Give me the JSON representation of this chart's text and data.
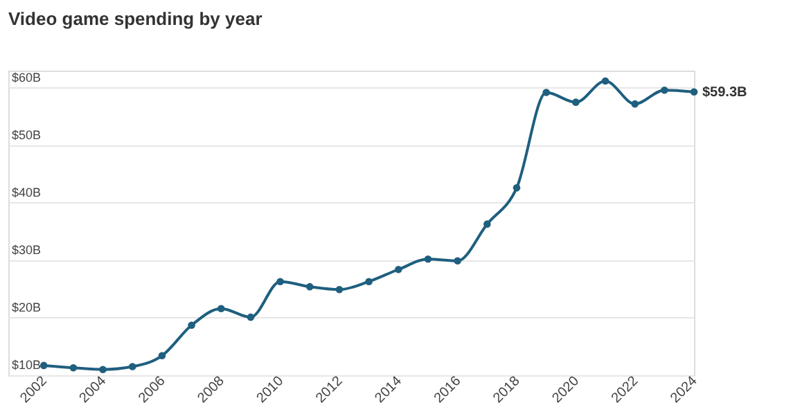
{
  "chart_data": {
    "type": "line",
    "title": "Video game spending by year",
    "x": [
      2002,
      2003,
      2004,
      2005,
      2006,
      2007,
      2008,
      2009,
      2010,
      2011,
      2012,
      2013,
      2014,
      2015,
      2016,
      2017,
      2018,
      2019,
      2020,
      2021,
      2022,
      2023,
      2024
    ],
    "series": [
      {
        "color": "#1f5f7f",
        "values": [
          11.7,
          11.3,
          11.0,
          11.5,
          13.4,
          18.7,
          21.6,
          20.1,
          26.3,
          25.4,
          24.9,
          26.3,
          28.4,
          30.2,
          29.9,
          36.3,
          42.6,
          59.2,
          57.5,
          61.2,
          57.2,
          59.6,
          59.3
        ]
      }
    ],
    "xlim": [
      2000.8,
      2024
    ],
    "xticks": [
      2002,
      2004,
      2006,
      2008,
      2010,
      2012,
      2014,
      2016,
      2018,
      2020,
      2022,
      2024
    ],
    "ylim": [
      10,
      63
    ],
    "yticks": [
      {
        "value": 10,
        "label": "$10B"
      },
      {
        "value": 20,
        "label": "$20B"
      },
      {
        "value": 30,
        "label": "$30B"
      },
      {
        "value": 40,
        "label": "$40B"
      },
      {
        "value": 50,
        "label": "$50B"
      },
      {
        "value": 60,
        "label": "$60B"
      }
    ],
    "annotations": [
      {
        "text": "$59.3B",
        "x": 2024,
        "y": 59.3
      }
    ],
    "grid": "y",
    "marker": "circle",
    "line_style": "solid"
  }
}
